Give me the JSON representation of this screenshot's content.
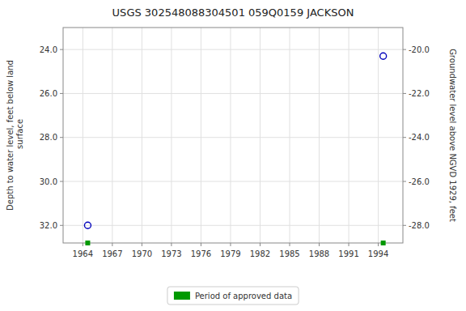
{
  "chart_data": {
    "type": "scatter",
    "title": "USGS 302548088304501 059Q0159  JACKSON",
    "y_label": "Depth to water level, feet below land\n surface",
    "y2_label": "Groundwater level above NGVD 1929, feet",
    "x": [
      1964.5,
      1994.5
    ],
    "series": [
      {
        "values": [
          32.0,
          24.3
        ],
        "color": "#0000bb",
        "marker": "circle"
      }
    ],
    "periods": {
      "name": "Period of approved data",
      "color": "#009900",
      "marker": "square",
      "x": [
        1964.5,
        1994.5
      ]
    },
    "xlim": [
      1962.0,
      1996.5
    ],
    "xticks": [
      1964,
      1967,
      1970,
      1973,
      1976,
      1979,
      1982,
      1985,
      1988,
      1991,
      1994
    ],
    "ylim": [
      32.8,
      23.0
    ],
    "yticks": [
      {
        "value": 24.0,
        "label": "24.0"
      },
      {
        "value": 26.0,
        "label": "26.0"
      },
      {
        "value": 28.0,
        "label": "28.0"
      },
      {
        "value": 30.0,
        "label": "30.0"
      },
      {
        "value": 32.0,
        "label": "32.0"
      }
    ],
    "y2lim": [
      -28.8,
      -19.0
    ],
    "y2ticks": [
      {
        "value": -20.0,
        "label": "-20.0"
      },
      {
        "value": -22.0,
        "label": "-22.0"
      },
      {
        "value": -24.0,
        "label": "-24.0"
      },
      {
        "value": -26.0,
        "label": "-26.0"
      },
      {
        "value": -28.0,
        "label": "-28.0"
      }
    ],
    "grid": true,
    "legend": "bottom"
  }
}
